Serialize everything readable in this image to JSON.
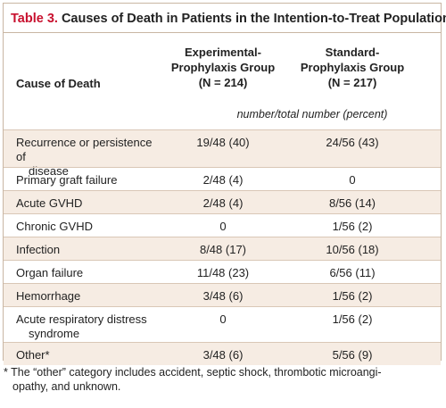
{
  "table": {
    "label": "Table 3.",
    "title": "Causes of Death in Patients in the Intention-to-Treat Population.",
    "columns": {
      "cause": "Cause of Death",
      "experimental_line1": "Experimental-",
      "experimental_line2": "Prophylaxis Group",
      "experimental_line3": "(N = 214)",
      "standard_line1": "Standard-",
      "standard_line2": "Prophylaxis Group",
      "standard_line3": "(N = 217)"
    },
    "units": "number/total number (percent)",
    "rows": [
      {
        "cause_line1": "Recurrence or persistence of",
        "cause_line2": "disease",
        "experimental": "19/48 (40)",
        "standard": "24/56 (43)"
      },
      {
        "cause_line1": "Primary graft failure",
        "cause_line2": "",
        "experimental": "2/48 (4)",
        "standard": "0"
      },
      {
        "cause_line1": "Acute GVHD",
        "cause_line2": "",
        "experimental": "2/48 (4)",
        "standard": "8/56 (14)"
      },
      {
        "cause_line1": "Chronic GVHD",
        "cause_line2": "",
        "experimental": "0",
        "standard": "1/56 (2)"
      },
      {
        "cause_line1": "Infection",
        "cause_line2": "",
        "experimental": "8/48 (17)",
        "standard": "10/56 (18)"
      },
      {
        "cause_line1": "Organ failure",
        "cause_line2": "",
        "experimental": "11/48 (23)",
        "standard": "6/56 (11)"
      },
      {
        "cause_line1": "Hemorrhage",
        "cause_line2": "",
        "experimental": "3/48 (6)",
        "standard": "1/56 (2)"
      },
      {
        "cause_line1": "Acute respiratory distress",
        "cause_line2": "syndrome",
        "experimental": "0",
        "standard": "1/56 (2)"
      },
      {
        "cause_line1": "Other*",
        "cause_line2": "",
        "experimental": "3/48 (6)",
        "standard": "5/56 (9)"
      }
    ],
    "footnote_line1": "* The “other” category includes accident, septic shock, thrombotic microangi-",
    "footnote_line2": "opathy, and unknown."
  },
  "colors": {
    "title_label": "#c8102e",
    "shaded_row": "#f6ece3",
    "border": "#c9b6a3"
  }
}
